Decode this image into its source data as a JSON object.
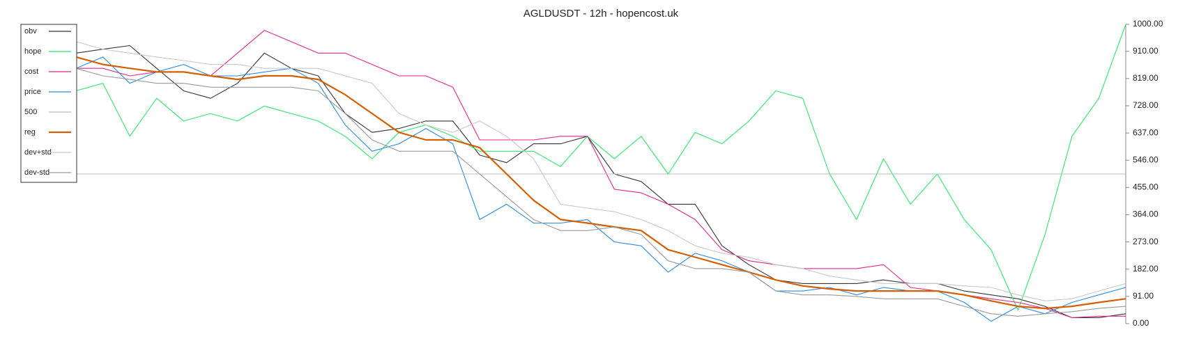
{
  "chart_data": {
    "type": "line",
    "title": "AGLDUSDT - 12h - hopencost.uk",
    "ylim": [
      0,
      1000
    ],
    "yticks": [
      {
        "value": 0,
        "label": "0.00"
      },
      {
        "value": 91,
        "label": "91.00"
      },
      {
        "value": 182,
        "label": "182.00"
      },
      {
        "value": 273,
        "label": "273.00"
      },
      {
        "value": 364,
        "label": "364.00"
      },
      {
        "value": 455,
        "label": "455.00"
      },
      {
        "value": 546,
        "label": "546.00"
      },
      {
        "value": 637,
        "label": "637.00"
      },
      {
        "value": 728,
        "label": "728.00"
      },
      {
        "value": 819,
        "label": "819.00"
      },
      {
        "value": 910,
        "label": "910.00"
      },
      {
        "value": 1000,
        "label": "1000.00"
      }
    ],
    "y_axis_side": "right",
    "legend": "upper left",
    "series": [
      {
        "name": "obv",
        "color": "#333333",
        "values": [
          904,
          917,
          929,
          853,
          778,
          753,
          803,
          904,
          853,
          828,
          702,
          639,
          652,
          677,
          677,
          563,
          538,
          601,
          601,
          626,
          500,
          475,
          399,
          399,
          260,
          197,
          146,
          134,
          134,
          134,
          146,
          134,
          134,
          109,
          96,
          83,
          58,
          20,
          20,
          33
        ]
      },
      {
        "name": "hope",
        "color": "#2ee66b",
        "values": [
          778,
          803,
          626,
          753,
          677,
          702,
          677,
          727,
          702,
          677,
          626,
          551,
          639,
          664,
          626,
          576,
          576,
          576,
          525,
          626,
          551,
          626,
          500,
          639,
          601,
          677,
          778,
          753,
          500,
          348,
          551,
          399,
          500,
          348,
          247,
          45,
          298,
          626,
          753,
          1000
        ]
      },
      {
        "name": "cost",
        "color": "#e0258a",
        "values": [
          853,
          853,
          828,
          841,
          841,
          828,
          904,
          980,
          942,
          904,
          904,
          866,
          828,
          828,
          790,
          614,
          614,
          614,
          626,
          626,
          449,
          437,
          399,
          348,
          247,
          210,
          197,
          184,
          184,
          184,
          197,
          121,
          109,
          96,
          83,
          71,
          51,
          20,
          25,
          25
        ]
      },
      {
        "name": "price",
        "color": "#2a8be0",
        "values": [
          853,
          891,
          803,
          841,
          866,
          828,
          828,
          841,
          853,
          803,
          664,
          576,
          601,
          652,
          601,
          348,
          399,
          336,
          336,
          348,
          273,
          260,
          172,
          235,
          210,
          172,
          109,
          109,
          121,
          96,
          121,
          109,
          109,
          71,
          8,
          58,
          33,
          71,
          96,
          121
        ]
      },
      {
        "name": "500",
        "color": "#bbbbbb",
        "values": [
          500,
          500,
          500,
          500,
          500,
          500,
          500,
          500,
          500,
          500,
          500,
          500,
          500,
          500,
          500,
          500,
          500,
          500,
          500,
          500,
          500,
          500,
          500,
          500,
          500,
          500,
          500,
          500,
          500,
          500,
          500,
          500,
          500,
          500,
          500,
          500,
          500,
          500,
          500,
          500
        ]
      },
      {
        "name": "reg",
        "color": "#d35f00",
        "values": [
          891,
          866,
          853,
          841,
          841,
          828,
          816,
          828,
          828,
          816,
          765,
          702,
          639,
          614,
          614,
          588,
          500,
          412,
          348,
          336,
          323,
          311,
          247,
          222,
          197,
          172,
          146,
          126,
          116,
          109,
          109,
          109,
          109,
          96,
          76,
          58,
          51,
          58,
          71,
          83
        ]
      },
      {
        "name": "dev+std",
        "color": "#c8c8c8",
        "values": [
          942,
          917,
          904,
          891,
          879,
          866,
          866,
          853,
          853,
          853,
          828,
          803,
          702,
          664,
          639,
          677,
          626,
          551,
          399,
          386,
          374,
          348,
          311,
          260,
          235,
          222,
          197,
          184,
          159,
          146,
          134,
          134,
          134,
          126,
          121,
          96,
          76,
          83,
          109,
          134
        ]
      },
      {
        "name": "dev-std",
        "color": "#999999",
        "values": [
          853,
          828,
          816,
          803,
          803,
          790,
          790,
          790,
          790,
          778,
          702,
          614,
          576,
          576,
          576,
          500,
          424,
          348,
          311,
          311,
          323,
          298,
          210,
          184,
          184,
          172,
          109,
          96,
          96,
          91,
          83,
          83,
          83,
          58,
          33,
          25,
          33,
          40,
          51,
          58
        ]
      }
    ]
  }
}
